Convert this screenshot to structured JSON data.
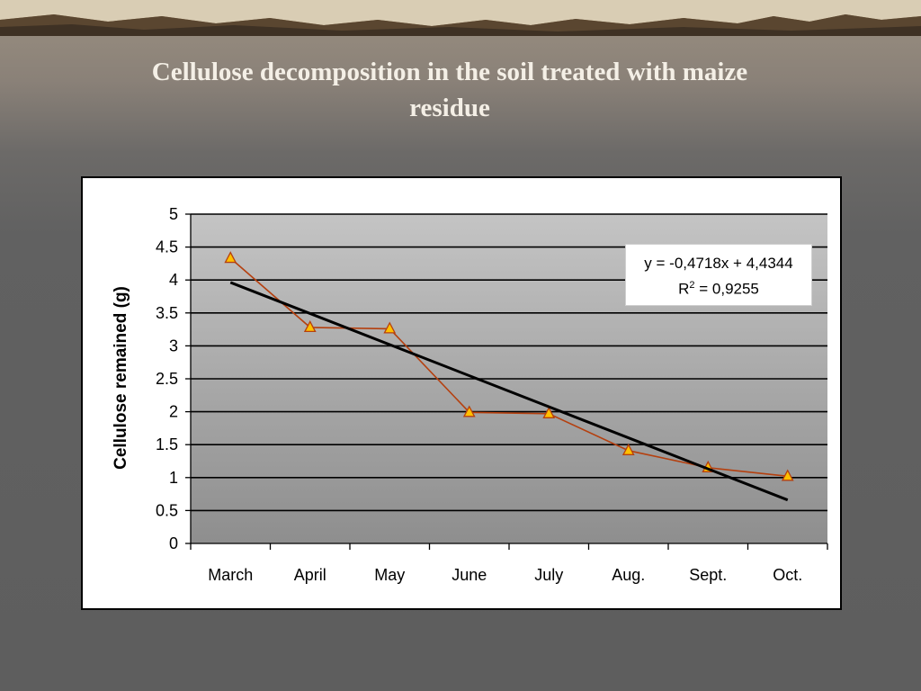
{
  "slide": {
    "title_line1": "Cellulose decomposition in the soil treated with maize",
    "title_line2": "residue"
  },
  "colors": {
    "plot_bg_top": "#c4c4c4",
    "plot_bg_bottom": "#8e8e8e",
    "series": "#b5400f",
    "marker_fill": "#ffc000",
    "trendline": "#000000"
  },
  "chart_data": {
    "type": "line",
    "categories": [
      "March",
      "April",
      "May",
      "June",
      "July",
      "Aug.",
      "Sept.",
      "Oct."
    ],
    "series": [
      {
        "values": [
          4.33,
          3.28,
          3.26,
          1.99,
          1.97,
          1.41,
          1.15,
          1.02
        ],
        "marker": "triangle"
      }
    ],
    "trendline": {
      "type": "linear",
      "equation": "y = -0,4718x + 4,4344",
      "r2_prefix": "R",
      "r2_sup": "2",
      "r2_value": " = 0,9255",
      "slope": -0.4718,
      "intercept": 4.4344
    },
    "ylabel": "Cellulose remained (g)",
    "xlabel": "",
    "ylim": [
      0,
      5
    ],
    "yticks": [
      "0",
      "0.5",
      "1",
      "1.5",
      "2",
      "2.5",
      "3",
      "3.5",
      "4",
      "4.5",
      "5"
    ],
    "grid": true
  }
}
